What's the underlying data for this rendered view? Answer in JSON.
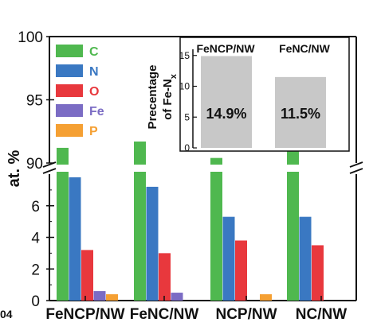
{
  "chart_data": [
    {
      "type": "bar",
      "ylabel": "at. %",
      "categories": [
        "FeNCP/NW",
        "FeNC/NW",
        "NCP/NW",
        "NC/NW"
      ],
      "yaxis_break": {
        "lower": [
          0,
          8
        ],
        "upper": [
          90,
          100
        ]
      },
      "lower_ticks": [
        "0",
        "2",
        "4",
        "6"
      ],
      "upper_ticks": [
        "90",
        "95",
        "100"
      ],
      "series": [
        {
          "name": "C",
          "color": "#4fb84f",
          "values": [
            91.2,
            91.7,
            90.4,
            91.7
          ]
        },
        {
          "name": "N",
          "color": "#3a78c2",
          "values": [
            7.8,
            7.2,
            5.3,
            5.3
          ]
        },
        {
          "name": "O",
          "color": "#e8383d",
          "values": [
            3.2,
            3.0,
            3.8,
            3.5
          ]
        },
        {
          "name": "Fe",
          "color": "#7b6cc4",
          "values": [
            0.6,
            0.5,
            0,
            0
          ]
        },
        {
          "name": "P",
          "color": "#f5a033",
          "values": [
            0.4,
            0,
            0.4,
            0
          ]
        }
      ],
      "legend_position": "top-left"
    },
    {
      "type": "bar",
      "ylabel_line1": "Precentage",
      "ylabel_line2_prefix": "of Fe-N",
      "ylabel_line2_sub": "x",
      "categories": [
        "FeNCP/NW",
        "FeNC/NW"
      ],
      "values": [
        14.9,
        11.5
      ],
      "value_labels": [
        "14.9%",
        "11.5%"
      ],
      "ticks": [
        "0",
        "5",
        "10",
        "15"
      ],
      "ylim": [
        0,
        16
      ],
      "color": "#c8c8c8"
    }
  ],
  "edge_fragment": "04"
}
